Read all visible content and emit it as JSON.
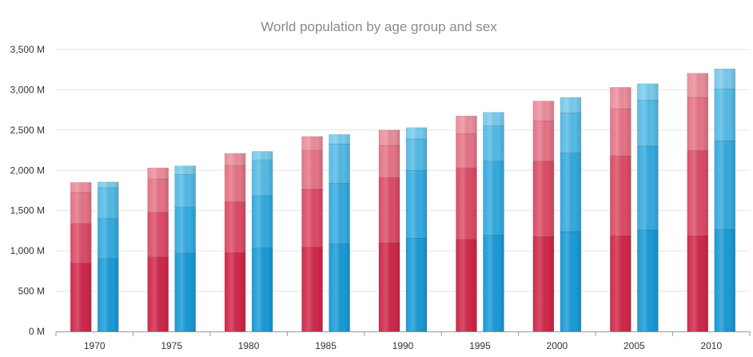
{
  "chart_data": {
    "type": "bar",
    "stacked": true,
    "title": "World population by age group and sex",
    "xlabel": "",
    "ylabel": "",
    "categories": [
      "1970",
      "1975",
      "1980",
      "1985",
      "1990",
      "1995",
      "2000",
      "2005",
      "2010"
    ],
    "y_tick_labels": [
      "0 M",
      "500 M",
      "1,000 M",
      "1,500 M",
      "2,000 M",
      "2,500 M",
      "3,000 M",
      "3,500 M"
    ],
    "y_ticks": [
      0,
      500,
      1000,
      1500,
      2000,
      2500,
      3000,
      3500
    ],
    "ylim": [
      0,
      3500
    ],
    "units": "M",
    "grid": true,
    "legend": "none",
    "groups": [
      {
        "sex_color": "female",
        "stack": [
          {
            "values": [
              850,
              925,
              980,
              1045,
              1100,
              1140,
              1175,
              1185,
              1185
            ],
            "color": "#d0294a"
          },
          {
            "values": [
              490,
              555,
              630,
              720,
              810,
              890,
              940,
              995,
              1060
            ],
            "color": "#dc4d67"
          },
          {
            "values": [
              385,
              415,
              450,
              480,
              400,
              425,
              500,
              585,
              660
            ],
            "color": "#e67487"
          },
          {
            "values": [
              125,
              135,
              150,
              175,
              190,
              220,
              245,
              265,
              300
            ],
            "color": "#ec8e9c"
          }
        ]
      },
      {
        "sex_color": "male",
        "stack": [
          {
            "values": [
              905,
              970,
              1035,
              1085,
              1155,
              1195,
              1240,
              1260,
              1265
            ],
            "color": "#1a9bd7"
          },
          {
            "values": [
              500,
              575,
              650,
              755,
              845,
              920,
              975,
              1040,
              1100
            ],
            "color": "#35abe0"
          },
          {
            "values": [
              380,
              405,
              440,
              485,
              390,
              440,
              500,
              570,
              645
            ],
            "color": "#55bbe6"
          },
          {
            "values": [
              70,
              105,
              110,
              120,
              140,
              165,
              190,
              205,
              250
            ],
            "color": "#79cbed"
          }
        ]
      }
    ]
  },
  "colors": {
    "female": "#d0294a",
    "male": "#1a9bd7",
    "grid": "#e4e4e4",
    "axis": "#999999",
    "title": "#8a8a8a"
  }
}
